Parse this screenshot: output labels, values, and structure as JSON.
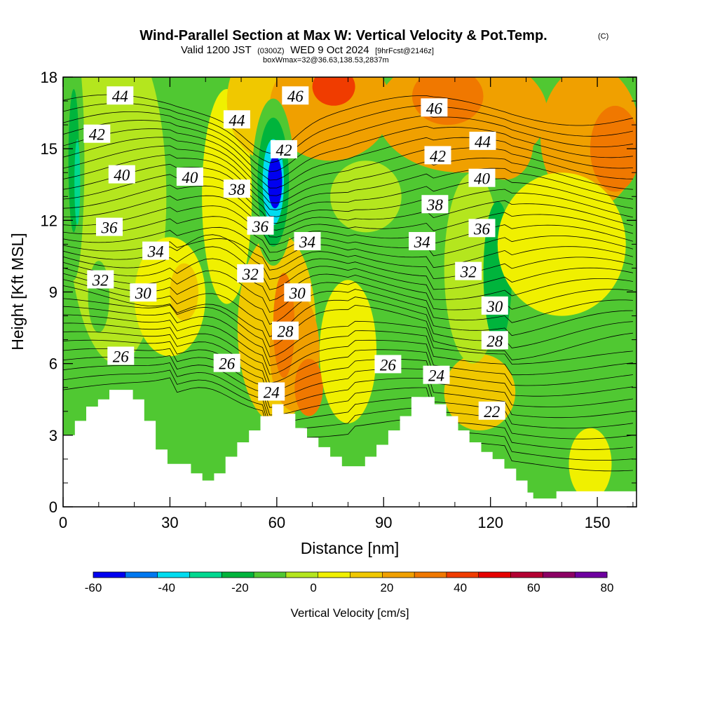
{
  "title": "Wind-Parallel Section at Max W: Vertical Velocity & Pot.Temp.",
  "title_mark": "(C)",
  "subtitle_a": "Valid 1200 JST",
  "subtitle_b": "(0300Z)",
  "subtitle_c": "WED 9 Oct 2024",
  "subtitle_d": "[9hrFcst@2146z]",
  "note": "boxWmax=32@36.63,138.53,2837m",
  "chart_data": {
    "type": "heatmap",
    "xlabel": "Distance [nm]",
    "ylabel": "Height [Kft MSL]",
    "xlim": [
      0,
      161
    ],
    "ylim": [
      0,
      18
    ],
    "xticks": [
      0,
      30,
      60,
      90,
      120,
      150
    ],
    "yticks": [
      0,
      3,
      6,
      9,
      12,
      15,
      18
    ],
    "colorbar": {
      "label": "Vertical Velocity [cm/s]",
      "tick_labels": [
        "-60",
        "-40",
        "-20",
        "0",
        "20",
        "40",
        "60",
        "80"
      ],
      "colors": [
        "#0000f0",
        "#0078f0",
        "#00dcf0",
        "#00d890",
        "#00b43c",
        "#50c832",
        "#b4e61e",
        "#f0f000",
        "#f0c800",
        "#f0a000",
        "#f07800",
        "#f03c00",
        "#e60000",
        "#b40032",
        "#8c0064",
        "#6e00a0"
      ],
      "range": [
        -60,
        80
      ]
    },
    "contours": {
      "variable": "Potential temperature (C)",
      "labels": [
        {
          "text": "44",
          "x": 16,
          "y": 17.2
        },
        {
          "text": "42",
          "x": 9.5,
          "y": 15.6
        },
        {
          "text": "40",
          "x": 16.5,
          "y": 13.9
        },
        {
          "text": "36",
          "x": 13,
          "y": 11.7
        },
        {
          "text": "34",
          "x": 26,
          "y": 10.7
        },
        {
          "text": "32",
          "x": 10.5,
          "y": 9.5
        },
        {
          "text": "30",
          "x": 22.5,
          "y": 8.95
        },
        {
          "text": "26",
          "x": 16.2,
          "y": 6.3
        },
        {
          "text": "40",
          "x": 35.6,
          "y": 13.8
        },
        {
          "text": "44",
          "x": 48.8,
          "y": 16.2
        },
        {
          "text": "46",
          "x": 65.2,
          "y": 17.2
        },
        {
          "text": "38",
          "x": 48.8,
          "y": 13.3
        },
        {
          "text": "42",
          "x": 62,
          "y": 14.95
        },
        {
          "text": "36",
          "x": 55.4,
          "y": 11.75
        },
        {
          "text": "34",
          "x": 68.6,
          "y": 11.1
        },
        {
          "text": "32",
          "x": 52.6,
          "y": 9.75
        },
        {
          "text": "30",
          "x": 65.8,
          "y": 8.95
        },
        {
          "text": "28",
          "x": 62.4,
          "y": 7.35
        },
        {
          "text": "26",
          "x": 46,
          "y": 6.0
        },
        {
          "text": "24",
          "x": 58.5,
          "y": 4.8
        },
        {
          "text": "26",
          "x": 91.2,
          "y": 5.95
        },
        {
          "text": "24",
          "x": 104.8,
          "y": 5.5
        },
        {
          "text": "46",
          "x": 104.2,
          "y": 16.7
        },
        {
          "text": "42",
          "x": 105.2,
          "y": 14.7
        },
        {
          "text": "44",
          "x": 117.8,
          "y": 15.3
        },
        {
          "text": "40",
          "x": 117.6,
          "y": 13.75
        },
        {
          "text": "38",
          "x": 104.4,
          "y": 12.65
        },
        {
          "text": "36",
          "x": 117.6,
          "y": 11.65
        },
        {
          "text": "34",
          "x": 100.8,
          "y": 11.1
        },
        {
          "text": "32",
          "x": 113.8,
          "y": 9.85
        },
        {
          "text": "30",
          "x": 121.2,
          "y": 8.4
        },
        {
          "text": "28",
          "x": 121.2,
          "y": 6.95
        },
        {
          "text": "22",
          "x": 120.4,
          "y": 4.0
        }
      ]
    },
    "terrain_height_kft": [
      {
        "x": 0,
        "h": 3.0
      },
      {
        "x": 3.3,
        "h": 3.6
      },
      {
        "x": 6.5,
        "h": 4.2
      },
      {
        "x": 9.8,
        "h": 4.5
      },
      {
        "x": 13,
        "h": 4.9
      },
      {
        "x": 19.6,
        "h": 4.5
      },
      {
        "x": 22.8,
        "h": 3.6
      },
      {
        "x": 26,
        "h": 2.4
      },
      {
        "x": 29.3,
        "h": 1.8
      },
      {
        "x": 32.6,
        "h": 1.8
      },
      {
        "x": 35.9,
        "h": 1.4
      },
      {
        "x": 39.1,
        "h": 1.1
      },
      {
        "x": 42.4,
        "h": 1.4
      },
      {
        "x": 45.6,
        "h": 2.1
      },
      {
        "x": 48.9,
        "h": 2.7
      },
      {
        "x": 52.2,
        "h": 3.2
      },
      {
        "x": 55.4,
        "h": 3.8
      },
      {
        "x": 58.7,
        "h": 4.3
      },
      {
        "x": 61.9,
        "h": 3.9
      },
      {
        "x": 65.2,
        "h": 3.3
      },
      {
        "x": 68.5,
        "h": 2.9
      },
      {
        "x": 71.7,
        "h": 2.5
      },
      {
        "x": 75,
        "h": 2.1
      },
      {
        "x": 78.3,
        "h": 1.7
      },
      {
        "x": 81.5,
        "h": 1.7
      },
      {
        "x": 84.8,
        "h": 2.1
      },
      {
        "x": 88,
        "h": 2.6
      },
      {
        "x": 91.3,
        "h": 3.2
      },
      {
        "x": 94.6,
        "h": 3.8
      },
      {
        "x": 97.8,
        "h": 4.6
      },
      {
        "x": 104.3,
        "h": 4.3
      },
      {
        "x": 107.6,
        "h": 3.8
      },
      {
        "x": 110.9,
        "h": 3.2
      },
      {
        "x": 114.1,
        "h": 2.7
      },
      {
        "x": 117.4,
        "h": 2.3
      },
      {
        "x": 120.6,
        "h": 2.0
      },
      {
        "x": 123.9,
        "h": 1.6
      },
      {
        "x": 127.2,
        "h": 1.1
      },
      {
        "x": 130.4,
        "h": 0.6
      },
      {
        "x": 132,
        "h": 0.35
      },
      {
        "x": 138.5,
        "h": 0.65
      },
      {
        "x": 161,
        "h": 0.65
      }
    ]
  }
}
